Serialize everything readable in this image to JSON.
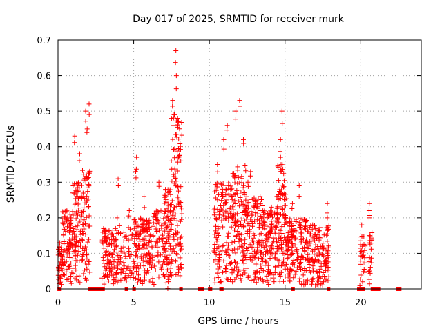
{
  "chart_data": {
    "type": "scatter",
    "title": "Day 017 of 2025, SRMTID for receiver murk",
    "xlabel": "GPS time / hours",
    "ylabel": "SRMTID / TECUs",
    "xlim": [
      0,
      24
    ],
    "ylim": [
      0,
      0.7
    ],
    "xticks": [
      0,
      5,
      10,
      15,
      20
    ],
    "yticks": [
      0,
      0.1,
      0.2,
      0.3,
      0.4,
      0.5,
      0.6,
      0.7
    ],
    "xtick_labels": [
      "0",
      "5",
      "10",
      "15",
      "20"
    ],
    "ytick_labels": [
      "0",
      "0.1",
      "0.2",
      "0.3",
      "0.4",
      "0.5",
      "0.6",
      "0.7"
    ],
    "grid": true,
    "marker": "plus",
    "color": "#ff0000",
    "zero_segments": [
      [
        0.05,
        0.15
      ],
      [
        2.1,
        3.0
      ],
      [
        4.5,
        4.55
      ],
      [
        5.0,
        5.05
      ],
      [
        8.1,
        8.15
      ],
      [
        9.35,
        9.55
      ],
      [
        10.0,
        10.1
      ],
      [
        10.75,
        10.85
      ],
      [
        15.5,
        15.55
      ],
      [
        17.85,
        17.9
      ],
      [
        19.85,
        20.2
      ],
      [
        20.75,
        21.2
      ],
      [
        22.45,
        22.6
      ]
    ],
    "clusters": [
      {
        "start": 0.0,
        "end": 0.3,
        "count": 40,
        "spread": 0.12,
        "peaks": [
          0.13
        ]
      },
      {
        "start": 0.3,
        "end": 1.0,
        "count": 90,
        "spread": 0.22,
        "peaks": [
          0.29,
          0.2
        ]
      },
      {
        "start": 1.0,
        "end": 1.6,
        "count": 90,
        "spread": 0.3,
        "peaks": [
          0.43,
          0.38
        ]
      },
      {
        "start": 1.6,
        "end": 2.1,
        "count": 70,
        "spread": 0.35,
        "peaks": [
          0.52,
          0.5,
          0.45
        ]
      },
      {
        "start": 2.9,
        "end": 4.0,
        "count": 120,
        "spread": 0.17,
        "peaks": [
          0.2,
          0.31
        ]
      },
      {
        "start": 4.0,
        "end": 5.0,
        "count": 60,
        "spread": 0.18,
        "peaks": [
          0.22
        ]
      },
      {
        "start": 5.0,
        "end": 6.2,
        "count": 140,
        "spread": 0.2,
        "peaks": [
          0.37,
          0.33,
          0.26
        ]
      },
      {
        "start": 6.2,
        "end": 7.0,
        "count": 60,
        "spread": 0.22,
        "peaks": [
          0.3
        ]
      },
      {
        "start": 7.0,
        "end": 7.5,
        "count": 90,
        "spread": 0.28,
        "peaks": [
          0.36,
          0.28,
          0.02
        ]
      },
      {
        "start": 7.5,
        "end": 8.2,
        "count": 110,
        "spread": 0.5,
        "peaks": [
          0.67,
          0.6,
          0.53,
          0.48
        ]
      },
      {
        "start": 10.3,
        "end": 11.5,
        "count": 150,
        "spread": 0.3,
        "peaks": [
          0.46,
          0.42,
          0.35
        ]
      },
      {
        "start": 11.5,
        "end": 12.4,
        "count": 130,
        "spread": 0.35,
        "peaks": [
          0.53,
          0.5,
          0.42
        ]
      },
      {
        "start": 12.4,
        "end": 13.5,
        "count": 130,
        "spread": 0.26,
        "peaks": [
          0.33,
          0.3,
          0.26
        ]
      },
      {
        "start": 13.5,
        "end": 14.5,
        "count": 120,
        "spread": 0.22,
        "peaks": [
          0.26,
          0.23
        ]
      },
      {
        "start": 14.5,
        "end": 15.1,
        "count": 100,
        "spread": 0.35,
        "peaks": [
          0.5,
          0.42,
          0.37
        ]
      },
      {
        "start": 15.1,
        "end": 16.5,
        "count": 160,
        "spread": 0.2,
        "peaks": [
          0.29,
          0.24
        ]
      },
      {
        "start": 16.5,
        "end": 17.9,
        "count": 140,
        "spread": 0.18,
        "peaks": [
          0.24,
          0.2,
          0.18
        ]
      },
      {
        "start": 19.9,
        "end": 20.3,
        "count": 30,
        "spread": 0.15,
        "peaks": [
          0.18,
          0.12
        ]
      },
      {
        "start": 20.5,
        "end": 20.75,
        "count": 20,
        "spread": 0.16,
        "peaks": [
          0.24,
          0.22,
          0.15
        ]
      }
    ]
  }
}
